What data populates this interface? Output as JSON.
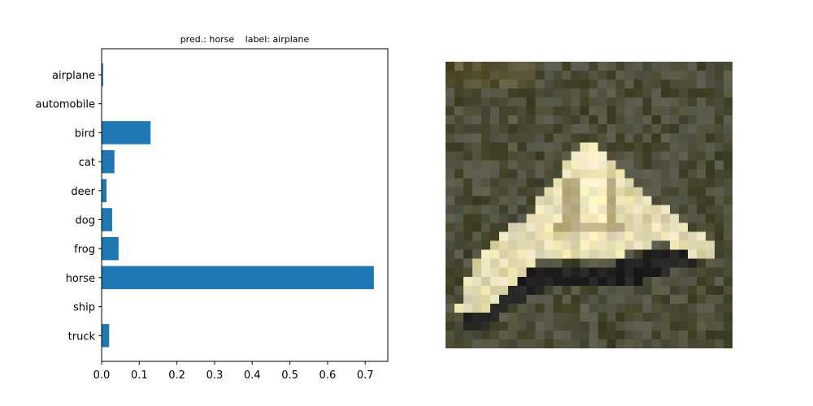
{
  "chart_data": {
    "type": "bar",
    "orientation": "horizontal",
    "title_pred_label": "pred.: horse",
    "title_true_label": "label: airplane",
    "categories": [
      "airplane",
      "automobile",
      "bird",
      "cat",
      "deer",
      "dog",
      "frog",
      "horse",
      "ship",
      "truck"
    ],
    "values": [
      0.004,
      0.0005,
      0.13,
      0.034,
      0.013,
      0.028,
      0.045,
      0.723,
      0.0005,
      0.02
    ],
    "xlim": [
      0,
      0.76
    ],
    "xticks": [
      "0.0",
      "0.1",
      "0.2",
      "0.3",
      "0.4",
      "0.5",
      "0.6",
      "0.7"
    ],
    "grid": false,
    "bar_color": "#1f77b4"
  },
  "image_panel": {
    "type": "pixelated photo",
    "grid_size": 32,
    "background_color": "#3f3f2b",
    "subject_color": "#e8ddb9",
    "shadow_color": "#1a1a17"
  }
}
